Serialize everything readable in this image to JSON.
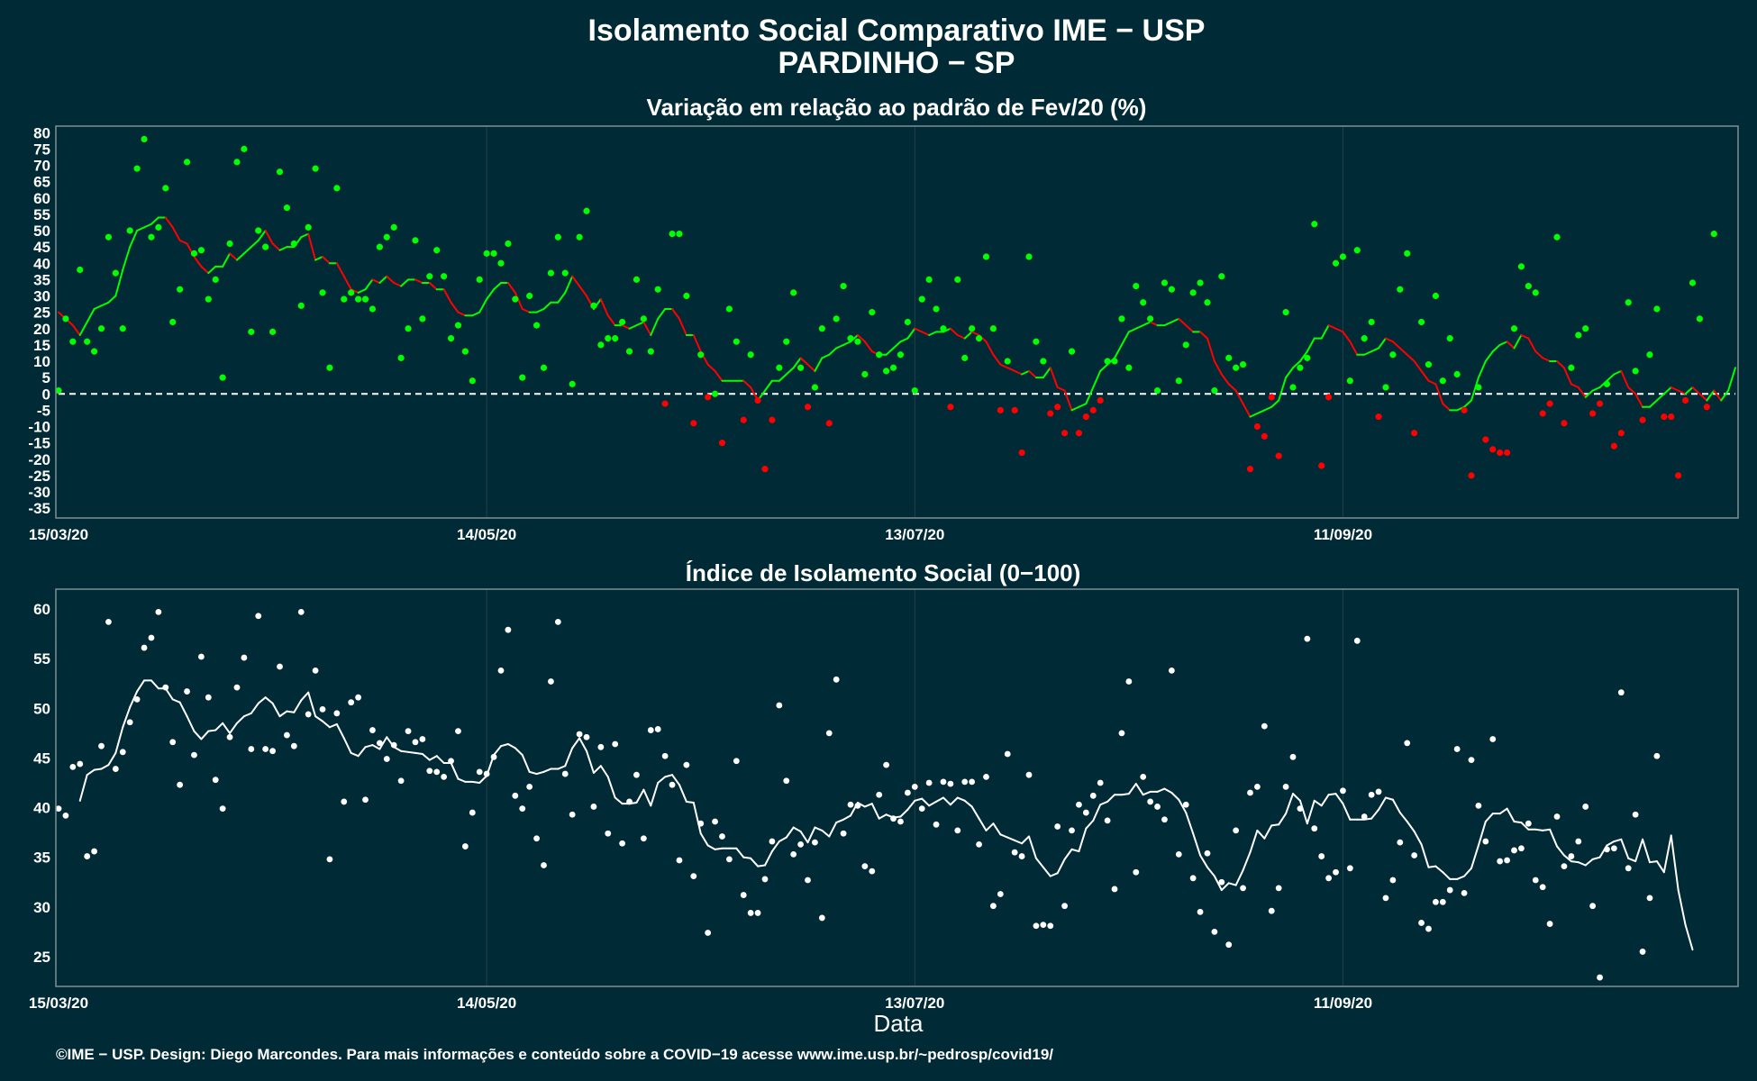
{
  "header": {
    "title_line1": "Isolamento Social Comparativo IME − USP",
    "title_line2": "PARDINHO − SP"
  },
  "footer": {
    "credit": "©IME − USP. Design: Diego Marcondes. Para mais informações e conteúdo sobre a COVID−19 acesse www.ime.usp.br/~pedrosp/covid19/"
  },
  "colors": {
    "background": "#002a35",
    "positive": "#00ff00",
    "negative": "#ff0000",
    "index": "#ffffff",
    "grid": "#21414a",
    "frame": "#7f8f94"
  },
  "chart_data": [
    {
      "type": "scatter",
      "title": "Variação em relação ao padrão de Fev/20 (%)",
      "xlabel": "",
      "ylabel": "",
      "x_start": "15/03/20",
      "x_ticks": [
        {
          "label": "15/03/20",
          "day": 0
        },
        {
          "label": "14/05/20",
          "day": 60
        },
        {
          "label": "13/07/20",
          "day": 120
        },
        {
          "label": "11/09/20",
          "day": 180
        }
      ],
      "xlim_days": [
        0,
        235
      ],
      "ylim": [
        -38,
        82
      ],
      "y_ticks": [
        80,
        75,
        70,
        65,
        60,
        55,
        50,
        45,
        40,
        35,
        30,
        25,
        20,
        15,
        10,
        5,
        0,
        -5,
        -10,
        -15,
        -20,
        -25,
        -30,
        -35
      ],
      "reference_line": 0,
      "point_color_rule": "green when value >= 0, red when value < 0",
      "points": [
        1,
        23,
        16,
        38,
        16,
        13,
        20,
        48,
        37,
        20,
        50,
        69,
        78,
        48,
        51,
        63,
        22,
        32,
        71,
        43,
        44,
        29,
        35,
        5,
        46,
        71,
        75,
        19,
        50,
        45,
        19,
        68,
        57,
        46,
        27,
        51,
        69,
        31,
        8,
        63,
        29,
        31,
        29,
        29,
        26,
        45,
        48,
        51,
        11,
        20,
        47,
        23,
        36,
        44,
        36,
        17,
        21,
        13,
        4,
        35,
        43,
        43,
        40,
        46,
        29,
        5,
        30,
        21,
        8,
        37,
        48,
        37,
        3,
        48,
        56,
        27,
        15,
        17,
        17,
        22,
        13,
        35,
        23,
        13,
        32,
        -3,
        49,
        49,
        30,
        -9,
        12,
        -1,
        0,
        -15,
        26,
        16,
        -8,
        12,
        -2,
        -23,
        -8,
        8,
        16,
        31,
        8,
        -4,
        2,
        20,
        -9,
        23,
        33,
        17,
        16,
        6,
        25,
        12,
        7,
        8,
        12,
        22,
        1,
        29,
        35,
        26,
        20,
        -4,
        35,
        11,
        20,
        17,
        42,
        20,
        -5,
        10,
        -5,
        -18,
        42,
        16,
        10,
        -6,
        -4,
        -12,
        13,
        -12,
        -7,
        -5,
        -2,
        10,
        10,
        23,
        8,
        33,
        28,
        23,
        1,
        34,
        32,
        4,
        15,
        31,
        34,
        28,
        1,
        36,
        11,
        8,
        9,
        -23,
        -10,
        -13,
        -1,
        -19,
        25,
        2,
        8,
        11,
        52,
        -22,
        -1,
        40,
        42,
        4,
        44,
        17,
        22,
        -7,
        2,
        12,
        32,
        43,
        -12,
        22,
        9,
        30,
        4,
        17,
        6,
        -5,
        -25,
        2,
        -14,
        -17,
        -18,
        -18,
        20,
        39,
        33,
        31,
        -6,
        -3,
        48,
        -9,
        8,
        18,
        20,
        -6,
        -3,
        3,
        -16,
        -12,
        28,
        7,
        -8,
        12,
        26,
        -7,
        -7,
        -25,
        -2,
        34,
        23,
        -4,
        49
      ],
      "trend": [
        25,
        23,
        21,
        18,
        22,
        26,
        27,
        28,
        30,
        38,
        45,
        50,
        51,
        52,
        54,
        54,
        51,
        47,
        46,
        42,
        39,
        37,
        39,
        39,
        43,
        41,
        43,
        45,
        47,
        50,
        46,
        44,
        45,
        45,
        48,
        49,
        41,
        42,
        40,
        40,
        36,
        32,
        31,
        32,
        35,
        34,
        36,
        34,
        33,
        35,
        35,
        34,
        34,
        32,
        32,
        28,
        25,
        24,
        24,
        25,
        29,
        32,
        34,
        34,
        31,
        26,
        25,
        25,
        26,
        28,
        28,
        31,
        36,
        33,
        30,
        26,
        29,
        24,
        21,
        21,
        20,
        21,
        22,
        18,
        23,
        26,
        26,
        23,
        18,
        18,
        13,
        9,
        7,
        4,
        4,
        4,
        4,
        2,
        -2,
        1,
        4,
        4,
        6,
        8,
        11,
        9,
        7,
        11,
        12,
        14,
        15,
        16,
        18,
        16,
        13,
        12,
        12,
        14,
        16,
        17,
        20,
        19,
        18,
        19,
        19,
        20,
        18,
        17,
        19,
        18,
        16,
        12,
        9,
        8,
        7,
        6,
        7,
        5,
        5,
        8,
        2,
        1,
        -5,
        -4,
        -3,
        2,
        7,
        9,
        11,
        15,
        19,
        20,
        21,
        22,
        21,
        21,
        22,
        23,
        21,
        19,
        19,
        17,
        10,
        6,
        3,
        1,
        -3,
        -7,
        -6,
        -5,
        -4,
        -2,
        5,
        8,
        10,
        13,
        17,
        17,
        21,
        20,
        19,
        16,
        12,
        12,
        13,
        14,
        17,
        16,
        14,
        12,
        10,
        7,
        4,
        3,
        -3,
        -5,
        -5,
        -4,
        -2,
        5,
        10,
        13,
        15,
        16,
        14,
        18,
        17,
        13,
        11,
        10,
        10,
        8,
        3,
        2,
        -1,
        1,
        2,
        4,
        6,
        7,
        2,
        0,
        -4,
        -4,
        -2,
        0,
        2,
        1,
        0,
        2,
        0,
        -2,
        1,
        -2,
        1,
        8
      ]
    },
    {
      "type": "scatter",
      "title": "Índice de Isolamento Social (0−100)",
      "xlabel": "Data",
      "ylabel": "",
      "x_start": "15/03/20",
      "x_ticks": [
        {
          "label": "15/03/20",
          "day": 0
        },
        {
          "label": "14/05/20",
          "day": 60
        },
        {
          "label": "13/07/20",
          "day": 120
        },
        {
          "label": "11/09/20",
          "day": 180
        }
      ],
      "xlim_days": [
        0,
        235
      ],
      "ylim": [
        22,
        62
      ],
      "y_ticks": [
        60,
        55,
        50,
        45,
        40,
        35,
        30,
        25
      ],
      "points": [
        39.9,
        39.2,
        44.1,
        44.4,
        35.1,
        35.6,
        46.2,
        58.7,
        43.9,
        45.6,
        48.6,
        50.9,
        56.1,
        57.1,
        59.7,
        52.1,
        46.6,
        42.3,
        51.7,
        45.3,
        55.2,
        51.1,
        42.8,
        39.9,
        47.1,
        52.1,
        55.1,
        45.9,
        59.3,
        45.9,
        45.7,
        54.2,
        47.3,
        46.2,
        59.7,
        49.4,
        53.8,
        49.9,
        34.8,
        49.5,
        40.6,
        50.6,
        51.1,
        40.8,
        47.8,
        46.5,
        44.9,
        46.3,
        42.7,
        47.7,
        46.6,
        46.9,
        43.7,
        43.6,
        43.1,
        44.7,
        47.7,
        36.1,
        39.5,
        43.6,
        43.4,
        45.1,
        53.8,
        57.9,
        41.2,
        39.9,
        42.1,
        36.9,
        34.2,
        52.7,
        58.7,
        43.4,
        39.3,
        47.4,
        47.1,
        40.1,
        46.1,
        37.4,
        46.4,
        36.4,
        40.6,
        43.3,
        36.9,
        47.8,
        47.9,
        45.2,
        42.3,
        34.7,
        44.3,
        33.1,
        38.4,
        27.4,
        38.6,
        37.1,
        34.8,
        44.7,
        31.2,
        29.4,
        29.4,
        32.8,
        36.6,
        50.3,
        42.7,
        35.3,
        36.3,
        32.7,
        36.5,
        28.9,
        47.5,
        52.9,
        37.4,
        40.3,
        40.2,
        34.1,
        33.6,
        41.3,
        44.3,
        38.9,
        38.6,
        41.5,
        42.1,
        39.9,
        42.5,
        38.3,
        42.6,
        42.4,
        37.7,
        42.6,
        42.6,
        36.3,
        43.1,
        30.1,
        31.3,
        45.4,
        35.5,
        35.1,
        43.3,
        28.1,
        28.2,
        28.1,
        38.1,
        30.1,
        37.7,
        40.3,
        39.5,
        41.2,
        42.5,
        38.7,
        31.8,
        47.5,
        52.7,
        33.5,
        43.1,
        40.6,
        40.1,
        38.8,
        53.8,
        35.3,
        40.3,
        32.9,
        29.5,
        35.4,
        27.5,
        32.5,
        26.2,
        37.7,
        31.9,
        41.5,
        42.1,
        48.2,
        29.6,
        31.9,
        42.1,
        45.1,
        39.9,
        57.0,
        37.9,
        35.1,
        32.9,
        33.5,
        41.7,
        33.9,
        56.8,
        39.1,
        41.3,
        41.6,
        30.9,
        32.7,
        36.5,
        46.5,
        35.2,
        28.4,
        27.8,
        30.5,
        30.5,
        31.7,
        45.9,
        31.4,
        44.8,
        40.2,
        36.6,
        46.9,
        34.6,
        34.7,
        35.7,
        35.9,
        38.4,
        32.7,
        32.0,
        28.3,
        39.1,
        34.1,
        35.1,
        36.6,
        40.1,
        30.1,
        22.9,
        35.8,
        35.9,
        51.6,
        33.9,
        39.3,
        25.5,
        30.9,
        45.2
      ],
      "trend": [
        null,
        null,
        null,
        40.7,
        43.3,
        43.8,
        43.9,
        44.3,
        45.5,
        48.1,
        50.1,
        51.7,
        52.8,
        52.8,
        52.0,
        52.0,
        50.9,
        50.6,
        49.2,
        47.7,
        46.9,
        47.7,
        47.8,
        48.5,
        47.5,
        48.5,
        49.2,
        49.5,
        50.5,
        51.1,
        50.5,
        49.2,
        49.7,
        49.6,
        50.8,
        51.6,
        49.2,
        48.7,
        48.1,
        48.4,
        47.0,
        45.5,
        45.2,
        46.1,
        46.3,
        45.9,
        47.1,
        46.1,
        45.7,
        45.6,
        45.5,
        45.4,
        44.8,
        45.2,
        44.5,
        44.5,
        42.9,
        42.6,
        42.6,
        42.5,
        43.2,
        45.3,
        46.2,
        46.4,
        46.0,
        45.3,
        43.6,
        43.4,
        43.6,
        43.9,
        43.9,
        44.2,
        46.0,
        47.0,
        45.7,
        43.5,
        44.2,
        43.1,
        41.0,
        40.4,
        40.4,
        40.5,
        41.8,
        40.2,
        42.5,
        43.1,
        43.3,
        42.3,
        40.6,
        40.5,
        37.4,
        36.2,
        35.8,
        35.9,
        35.9,
        35.9,
        35.0,
        34.9,
        34.1,
        34.2,
        35.6,
        36.6,
        37.0,
        38.0,
        37.6,
        36.5,
        38.0,
        37.7,
        37.1,
        38.5,
        38.8,
        39.2,
        40.5,
        40.1,
        40.4,
        38.9,
        39.3,
        39.0,
        39.1,
        39.8,
        40.7,
        40.9,
        40.2,
        40.6,
        41.0,
        40.3,
        41.0,
        40.7,
        40.1,
        38.9,
        37.7,
        38.4,
        37.3,
        37.0,
        36.7,
        36.4,
        37.1,
        34.9,
        34.0,
        33.1,
        33.4,
        34.8,
        35.8,
        35.6,
        37.9,
        38.7,
        40.3,
        40.6,
        41.3,
        41.3,
        41.4,
        42.4,
        41.3,
        41.6,
        41.6,
        41.9,
        41.5,
        40.8,
        39.5,
        37.4,
        35.2,
        34.0,
        33.1,
        31.7,
        32.4,
        32.2,
        33.7,
        35.5,
        37.7,
        36.9,
        38.2,
        38.3,
        39.4,
        41.4,
        40.7,
        38.4,
        40.7,
        40.2,
        41.3,
        41.4,
        40.4,
        38.8,
        38.8,
        38.8,
        38.9,
        39.8,
        41.0,
        40.8,
        39.5,
        38.6,
        37.6,
        36.3,
        34.0,
        34.1,
        33.5,
        32.8,
        32.8,
        33.1,
        33.9,
        36.2,
        38.6,
        39.4,
        39.4,
        39.9,
        38.6,
        38.5,
        37.8,
        37.8,
        37.7,
        37.8,
        36.1,
        35.2,
        34.6,
        34.5,
        34.2,
        34.8,
        35.0,
        36.2,
        36.6,
        36.8,
        34.9,
        34.6,
        36.8,
        34.5,
        34.6,
        33.5,
        37.2,
        31.7,
        28.2,
        25.7
      ]
    }
  ]
}
